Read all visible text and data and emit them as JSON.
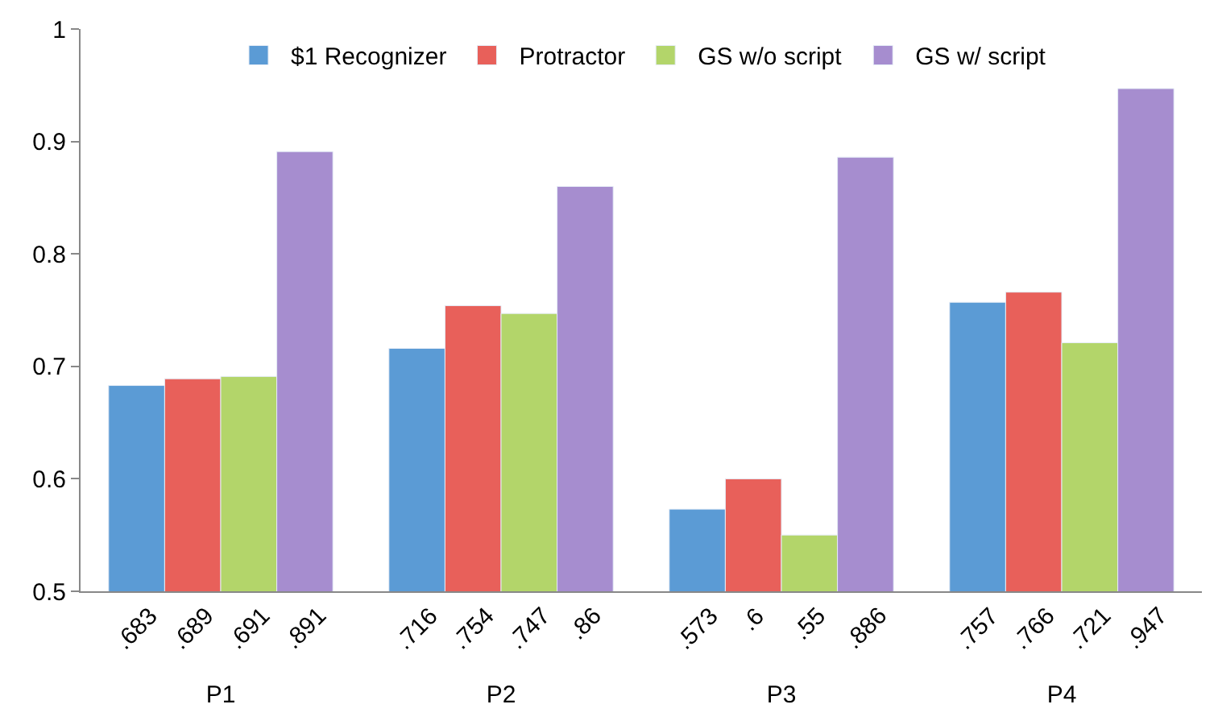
{
  "chart_data": {
    "type": "bar",
    "categories": [
      "P1",
      "P2",
      "P3",
      "P4"
    ],
    "series": [
      {
        "name": "$1 Recognizer",
        "color": "#5b9bd5",
        "values": [
          0.683,
          0.716,
          0.573,
          0.757
        ],
        "value_labels": [
          ".683",
          ".716",
          ".573",
          ".757"
        ]
      },
      {
        "name": "Protractor",
        "color": "#e8605a",
        "values": [
          0.689,
          0.754,
          0.6,
          0.766
        ],
        "value_labels": [
          ".689",
          ".754",
          ".6",
          ".766"
        ]
      },
      {
        "name": "GS w/o script",
        "color": "#b3d56a",
        "values": [
          0.691,
          0.747,
          0.55,
          0.721
        ],
        "value_labels": [
          ".691",
          ".747",
          ".55",
          ".721"
        ]
      },
      {
        "name": "GS w/ script",
        "color": "#a68dcf",
        "values": [
          0.891,
          0.86,
          0.886,
          0.947
        ],
        "value_labels": [
          ".891",
          ".86",
          ".886",
          ".947"
        ]
      }
    ],
    "ylim": [
      0.5,
      1
    ],
    "yticks": [
      0.5,
      0.6,
      0.7,
      0.8,
      0.9,
      1
    ],
    "legend": "top"
  }
}
